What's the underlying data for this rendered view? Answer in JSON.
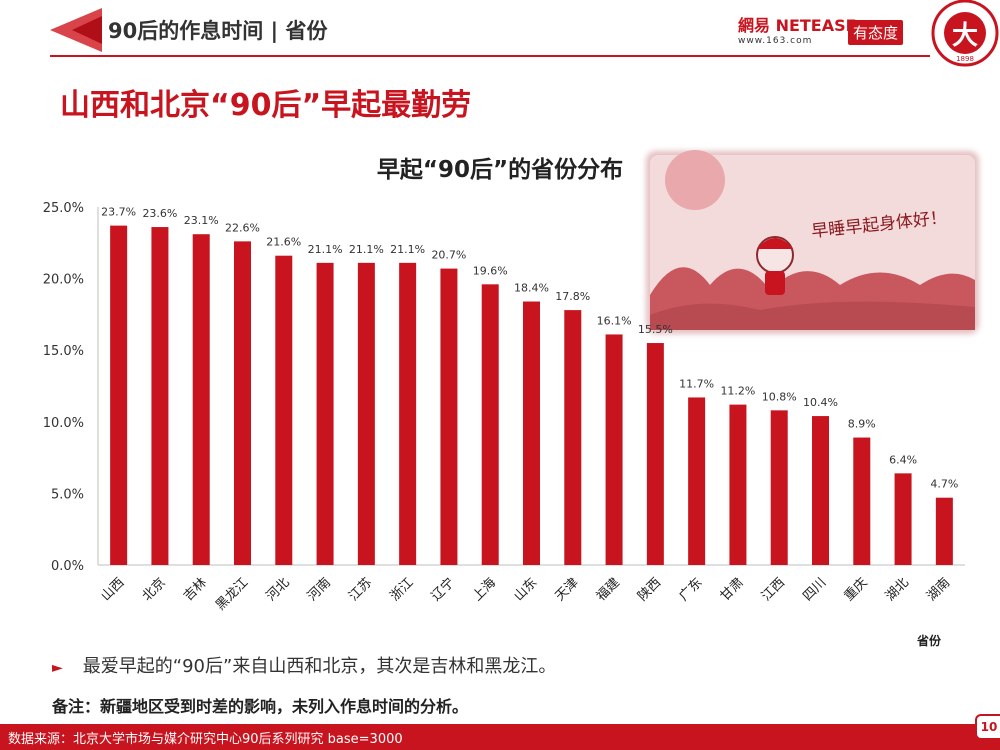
{
  "header": {
    "section_title": "90后的作息时间 | 省份",
    "logo_netease_line1": "網易 NETEASE",
    "logo_netease_line2": "www.163.com",
    "logo_youtaidu": "有态度",
    "seal_text": "PEKING 1898"
  },
  "main_title": "山西和北京“90后”早起最勤劳",
  "illustration_text": "早睡早起身体好！",
  "chart_data": {
    "type": "bar",
    "title": "早起“90后”的省份分布",
    "xlabel": "省份",
    "ylabel": "",
    "categories": [
      "山西",
      "北京",
      "吉林",
      "黑龙江",
      "河北",
      "河南",
      "江苏",
      "浙江",
      "辽宁",
      "上海",
      "山东",
      "天津",
      "福建",
      "陕西",
      "广东",
      "甘肃",
      "江西",
      "四川",
      "重庆",
      "湖北",
      "湖南"
    ],
    "values": [
      23.7,
      23.6,
      23.1,
      22.6,
      21.6,
      21.1,
      21.1,
      21.1,
      20.7,
      19.6,
      18.4,
      17.8,
      16.1,
      15.5,
      11.7,
      11.2,
      10.8,
      10.4,
      8.9,
      6.4,
      4.7
    ],
    "data_labels": [
      "23.7%",
      "23.6%",
      "23.1%",
      "22.6%",
      "21.6%",
      "21.1%",
      "21.1%",
      "21.1%",
      "20.7%",
      "19.6%",
      "18.4%",
      "17.8%",
      "16.1%",
      "15.5%",
      "11.7%",
      "11.2%",
      "10.8%",
      "10.4%",
      "8.9%",
      "6.4%",
      "4.7%"
    ],
    "yticks": [
      "0.0%",
      "5.0%",
      "10.0%",
      "15.0%",
      "20.0%",
      "25.0%"
    ],
    "ylim": [
      0,
      25
    ],
    "grid": false,
    "bar_color": "#c8141e"
  },
  "notes": {
    "bullet": "最爱早起的“90后”来自山西和北京，其次是吉林和黑龙江。",
    "remark": "备注：新疆地区受到时差的影响，未列入作息时间的分析。"
  },
  "footer": {
    "source": "数据来源：北京大学市场与媒介研究中心90后系列研究 base=3000",
    "page_number": "10"
  },
  "colors": {
    "accent": "#c8141e",
    "text": "#333333"
  }
}
